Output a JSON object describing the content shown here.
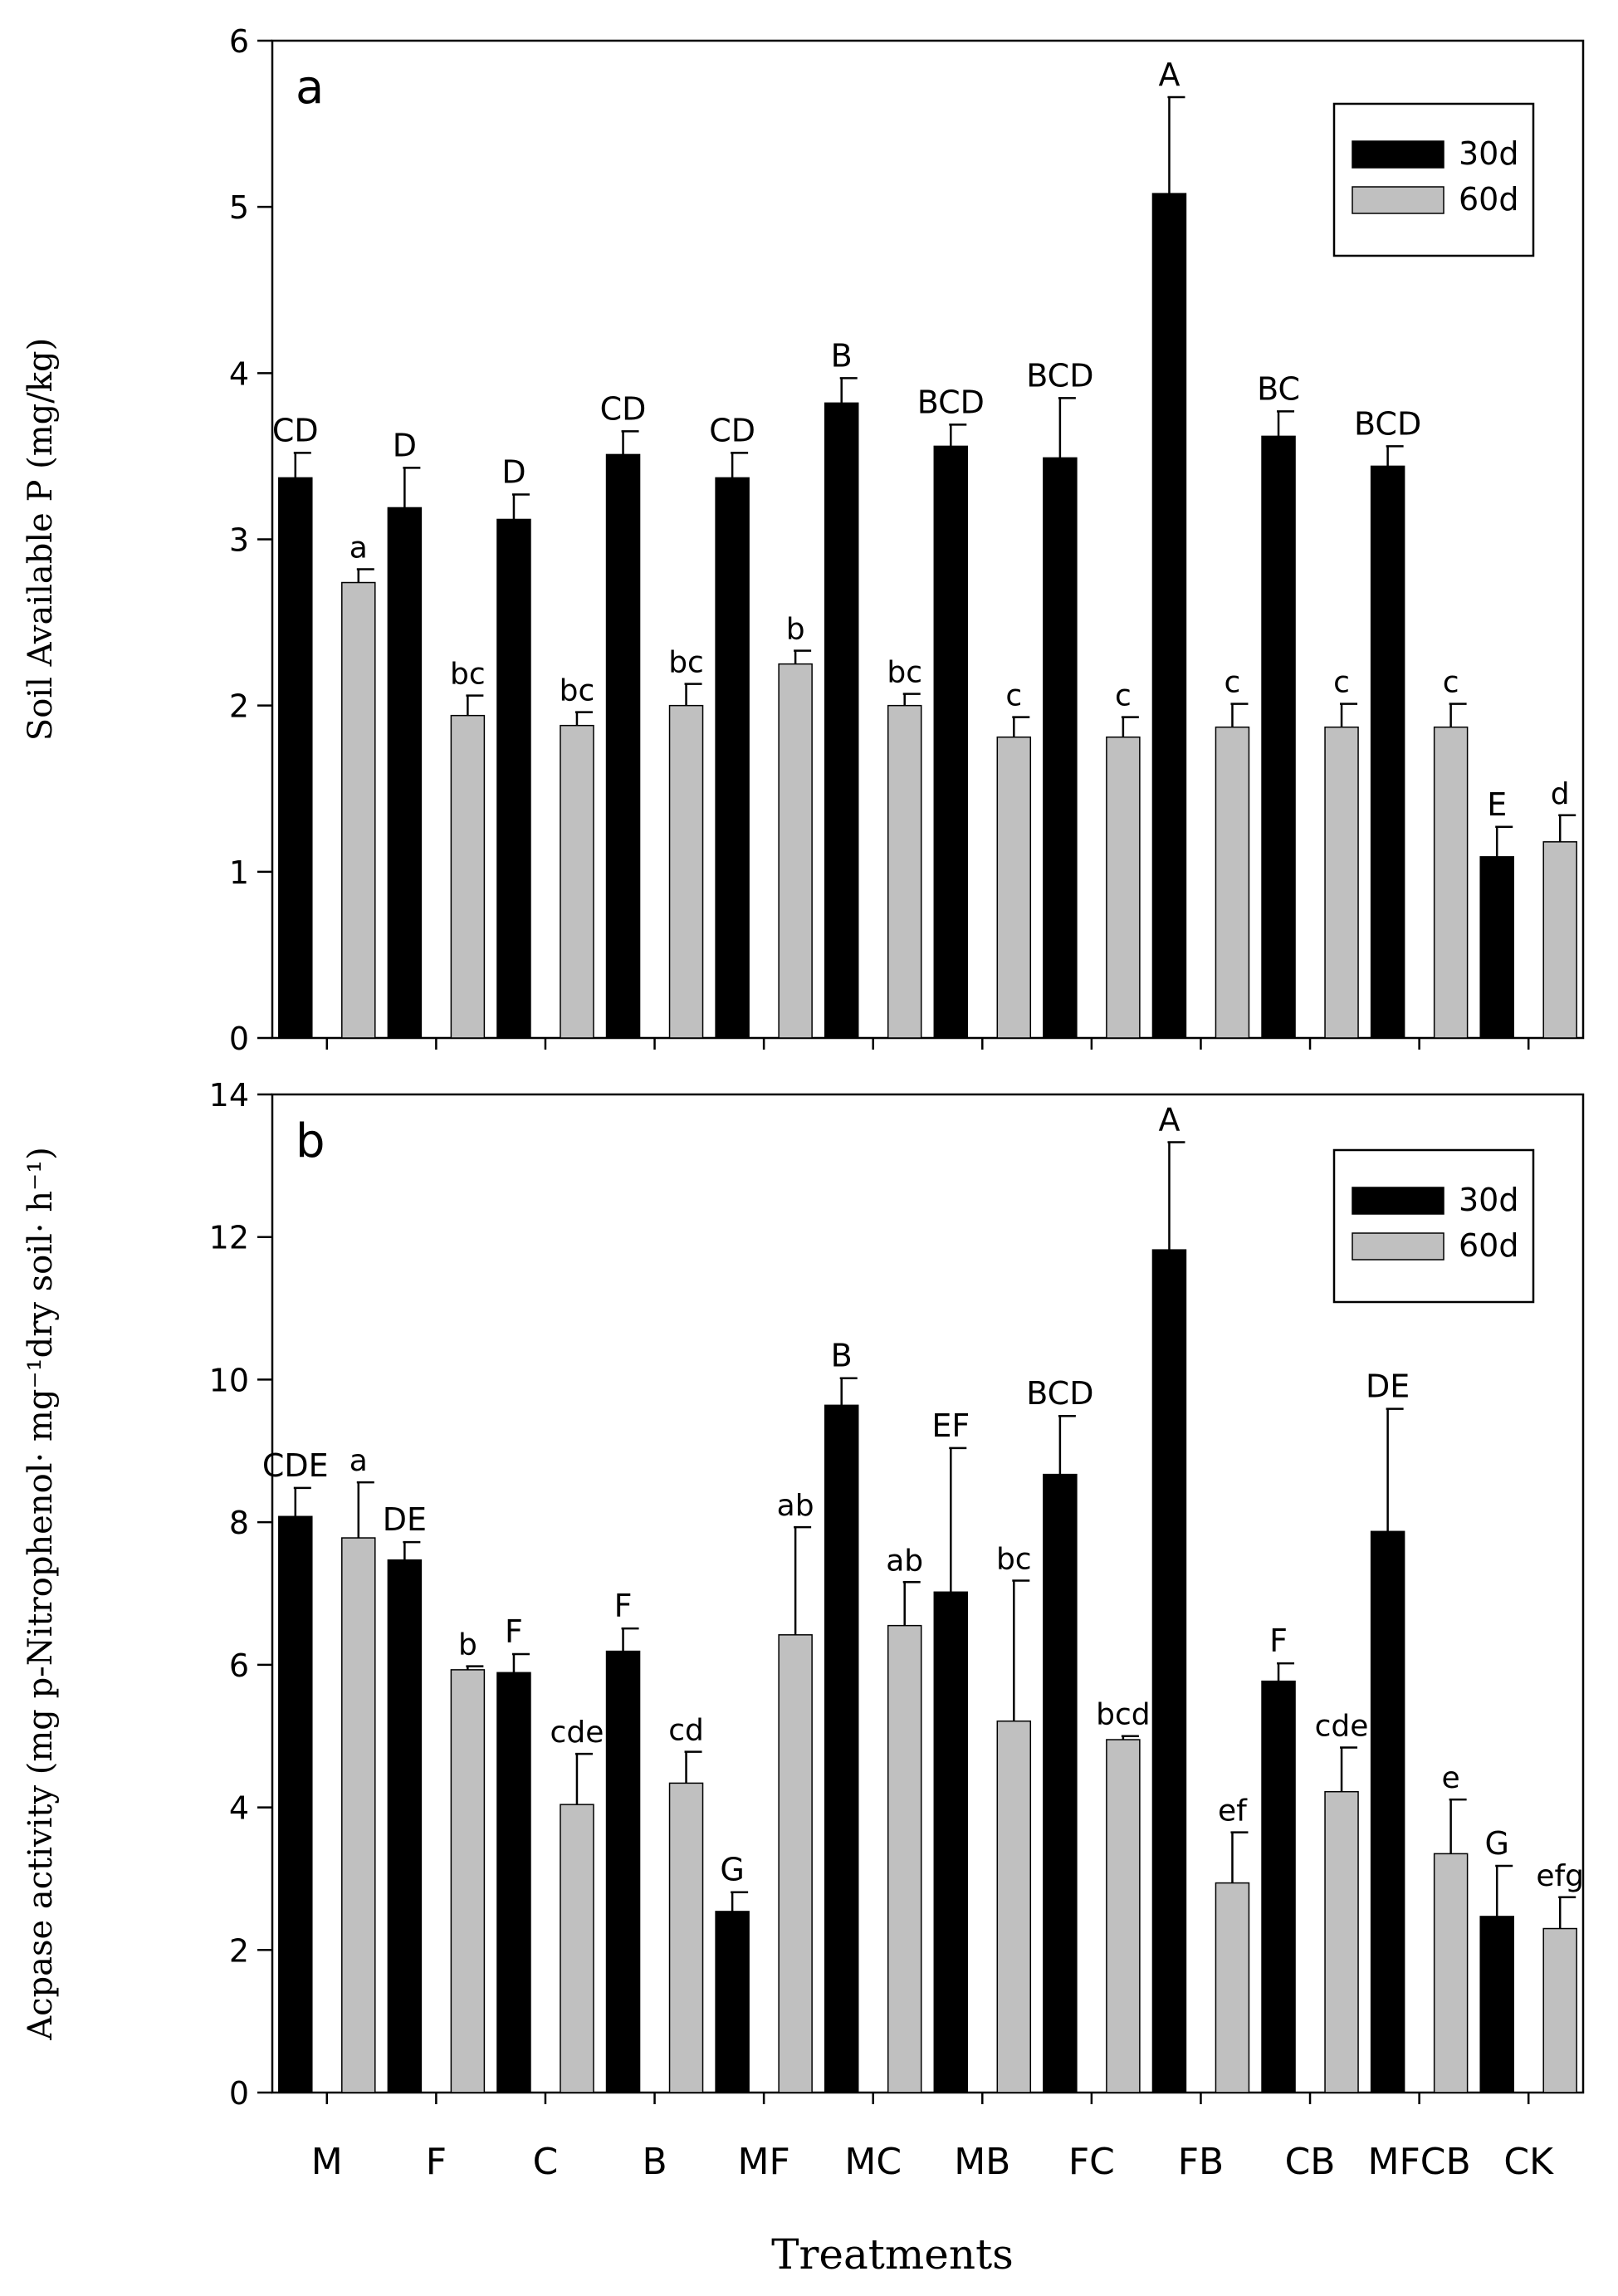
{
  "colors": {
    "series_30d": "#000000",
    "series_60d": "#c0c0c0",
    "axis": "#000000"
  },
  "xlabel": "Treatments",
  "chart_data": [
    {
      "type": "bar",
      "panel_label": "a",
      "title": "",
      "xlabel": "Treatments",
      "ylabel": "Soil Available P (mg/kg)",
      "ylim": [
        0,
        6
      ],
      "yticks": [
        0,
        1,
        2,
        3,
        4,
        5,
        6
      ],
      "ytick_labels": [
        "0",
        "1",
        "2",
        "3",
        "4",
        "5",
        "6"
      ],
      "legend_position": "top-right",
      "categories": [
        "M",
        "F",
        "C",
        "B",
        "MF",
        "MC",
        "MB",
        "FC",
        "FB",
        "CB",
        "MFCB",
        "CK"
      ],
      "series": [
        {
          "name": "30d",
          "values": [
            3.37,
            3.19,
            3.12,
            3.51,
            3.37,
            3.82,
            3.56,
            3.49,
            5.08,
            3.62,
            3.44,
            1.09
          ],
          "errors": [
            0.15,
            0.24,
            0.15,
            0.14,
            0.15,
            0.15,
            0.13,
            0.36,
            0.58,
            0.15,
            0.12,
            0.18
          ],
          "letters": [
            "CD",
            "D",
            "D",
            "CD",
            "CD",
            "B",
            "BCD",
            "BCD",
            "A",
            "BC",
            "BCD",
            "E"
          ]
        },
        {
          "name": "60d",
          "values": [
            2.74,
            1.94,
            1.88,
            2.0,
            2.25,
            2.0,
            1.81,
            1.81,
            1.87,
            1.87,
            1.87,
            1.18
          ],
          "errors": [
            0.08,
            0.12,
            0.08,
            0.13,
            0.08,
            0.07,
            0.12,
            0.12,
            0.14,
            0.14,
            0.14,
            0.16
          ],
          "letters": [
            "a",
            "bc",
            "bc",
            "bc",
            "b",
            "bc",
            "c",
            "c",
            "c",
            "c",
            "c",
            "d"
          ]
        }
      ]
    },
    {
      "type": "bar",
      "panel_label": "b",
      "title": "",
      "xlabel": "Treatments",
      "ylabel": "Acpase activity (mg p-Nitrophenol· mg⁻¹dry soil· h⁻¹)",
      "ylim": [
        0,
        14
      ],
      "yticks": [
        0,
        2,
        4,
        6,
        8,
        10,
        12,
        14
      ],
      "ytick_labels": [
        "0",
        "2",
        "4",
        "6",
        "8",
        "10",
        "12",
        "14"
      ],
      "legend_position": "top-right",
      "categories": [
        "M",
        "F",
        "C",
        "B",
        "MF",
        "MC",
        "MB",
        "FC",
        "FB",
        "CB",
        "MFCB",
        "CK"
      ],
      "series": [
        {
          "name": "30d",
          "values": [
            8.08,
            7.47,
            5.89,
            6.19,
            2.54,
            9.64,
            7.02,
            8.67,
            11.82,
            5.77,
            7.87,
            2.47
          ],
          "errors": [
            0.4,
            0.25,
            0.26,
            0.32,
            0.27,
            0.38,
            2.02,
            0.82,
            1.51,
            0.25,
            1.72,
            0.71
          ],
          "letters": [
            "CDE",
            "DE",
            "F",
            "F",
            "G",
            "B",
            "EF",
            "BCD",
            "A",
            "F",
            "DE",
            "G"
          ]
        },
        {
          "name": "60d",
          "values": [
            7.78,
            5.93,
            4.04,
            4.34,
            6.42,
            6.55,
            5.21,
            4.95,
            2.94,
            4.22,
            3.35,
            2.3
          ],
          "errors": [
            0.78,
            0.05,
            0.71,
            0.44,
            1.51,
            0.61,
            1.97,
            0.05,
            0.71,
            0.62,
            0.76,
            0.44
          ],
          "letters": [
            "a",
            "b",
            "cde",
            "cd",
            "ab",
            "ab",
            "bc",
            "bcd",
            "ef",
            "cde",
            "e",
            "efg"
          ]
        }
      ]
    }
  ]
}
